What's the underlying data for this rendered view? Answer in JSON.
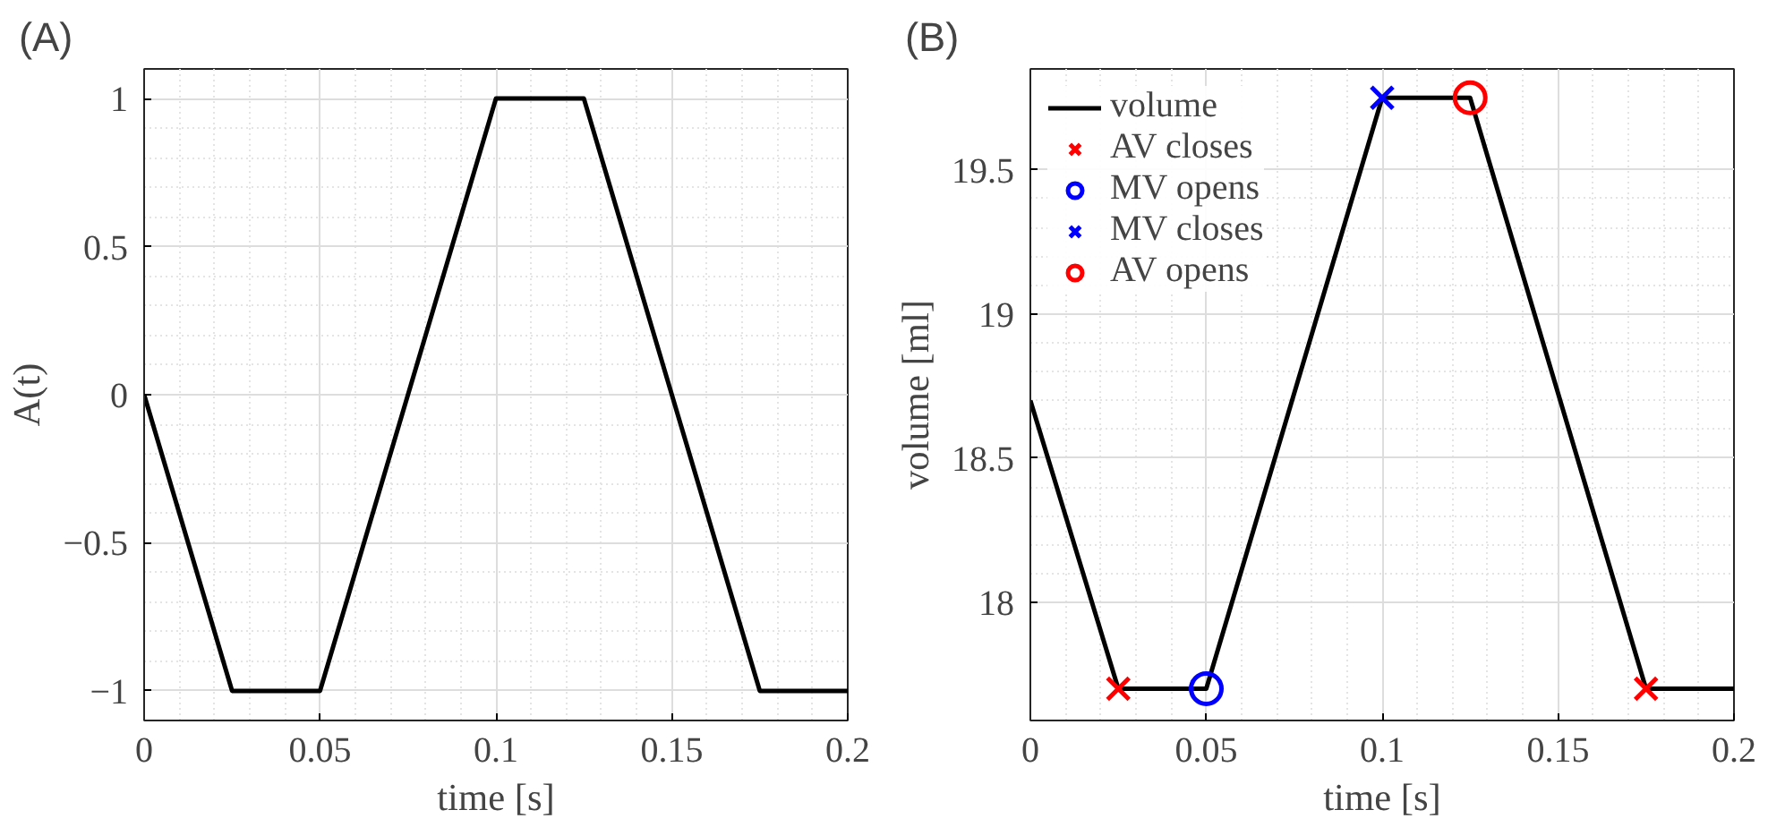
{
  "chart_data": [
    {
      "type": "line",
      "title": "(A)",
      "xlabel": "time [s]",
      "ylabel": "A(t)",
      "xlim": [
        0,
        0.2
      ],
      "ylim": [
        -1.1,
        1.1
      ],
      "xticks": [
        0,
        0.05,
        0.1,
        0.15,
        0.2
      ],
      "yticks": [
        -1,
        -0.5,
        0,
        0.5,
        1
      ],
      "grid": true,
      "series": [
        {
          "color": "#000000",
          "x": [
            0,
            0.025,
            0.05,
            0.1,
            0.125,
            0.175,
            0.2
          ],
          "values": [
            0,
            -1,
            -1,
            1,
            1,
            -1,
            -1
          ]
        }
      ]
    },
    {
      "type": "line",
      "title": "(B)",
      "xlabel": "time [s]",
      "ylabel": "volume [ml]",
      "xlim": [
        0,
        0.2
      ],
      "ylim": [
        17.59,
        19.85
      ],
      "xticks": [
        0,
        0.05,
        0.1,
        0.15,
        0.2
      ],
      "yticks": [
        18,
        18.5,
        19,
        19.5
      ],
      "grid": true,
      "legend": "top left",
      "series": [
        {
          "name": "volume",
          "color": "#000000",
          "x": [
            0,
            0.025,
            0.05,
            0.1,
            0.125,
            0.175,
            0.2
          ],
          "values": [
            18.7,
            17.7,
            17.7,
            19.75,
            19.75,
            17.7,
            17.7
          ]
        },
        {
          "name": "AV closes",
          "type": "scatter",
          "marker": "cross",
          "color": "#ff0000",
          "x": [
            0.025,
            0.175
          ],
          "values": [
            17.7,
            17.7
          ]
        },
        {
          "name": "MV opens",
          "type": "scatter",
          "marker": "circle",
          "color": "#0000ff",
          "x": [
            0.05
          ],
          "values": [
            17.7
          ]
        },
        {
          "name": "MV closes",
          "type": "scatter",
          "marker": "cross",
          "color": "#0000ff",
          "x": [
            0.1
          ],
          "values": [
            19.75
          ]
        },
        {
          "name": "AV opens",
          "type": "scatter",
          "marker": "circle",
          "color": "#ff0000",
          "x": [
            0.125
          ],
          "values": [
            19.75
          ]
        }
      ]
    }
  ]
}
